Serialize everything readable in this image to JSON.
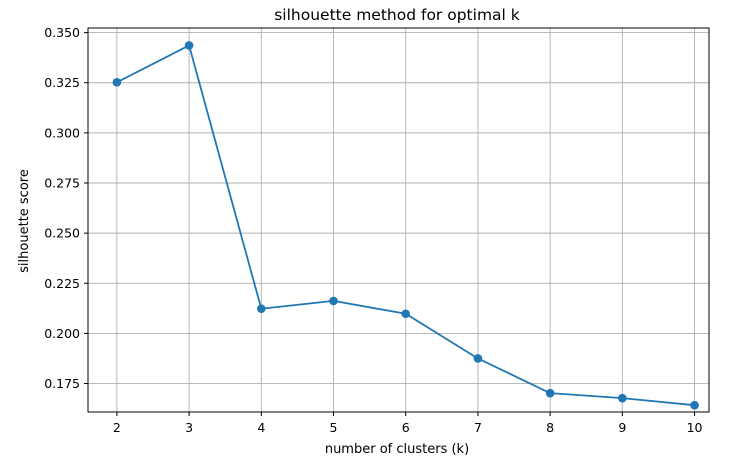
{
  "chart_data": {
    "type": "line",
    "title": "silhouette method for optimal k",
    "xlabel": "number of clusters (k)",
    "ylabel": "silhouette score",
    "x": [
      2,
      3,
      4,
      5,
      6,
      7,
      8,
      9,
      10
    ],
    "series": [
      {
        "values": [
          0.3252,
          0.3436,
          0.2123,
          0.2162,
          0.2098,
          0.1875,
          0.1702,
          0.1677,
          0.1642
        ],
        "color": "#1f77b4",
        "marker": "circle"
      }
    ],
    "xlim": [
      1.6,
      10.2
    ],
    "ylim": [
      0.1608,
      0.3523
    ],
    "xticks": [
      2,
      3,
      4,
      5,
      6,
      7,
      8,
      9,
      10
    ],
    "yticks": [
      0.175,
      0.2,
      0.225,
      0.25,
      0.275,
      0.3,
      0.325,
      0.35
    ],
    "ytick_labels": [
      "0.175",
      "0.200",
      "0.225",
      "0.250",
      "0.275",
      "0.300",
      "0.325",
      "0.350"
    ],
    "grid": true,
    "grid_color": "#b0b0b0"
  }
}
